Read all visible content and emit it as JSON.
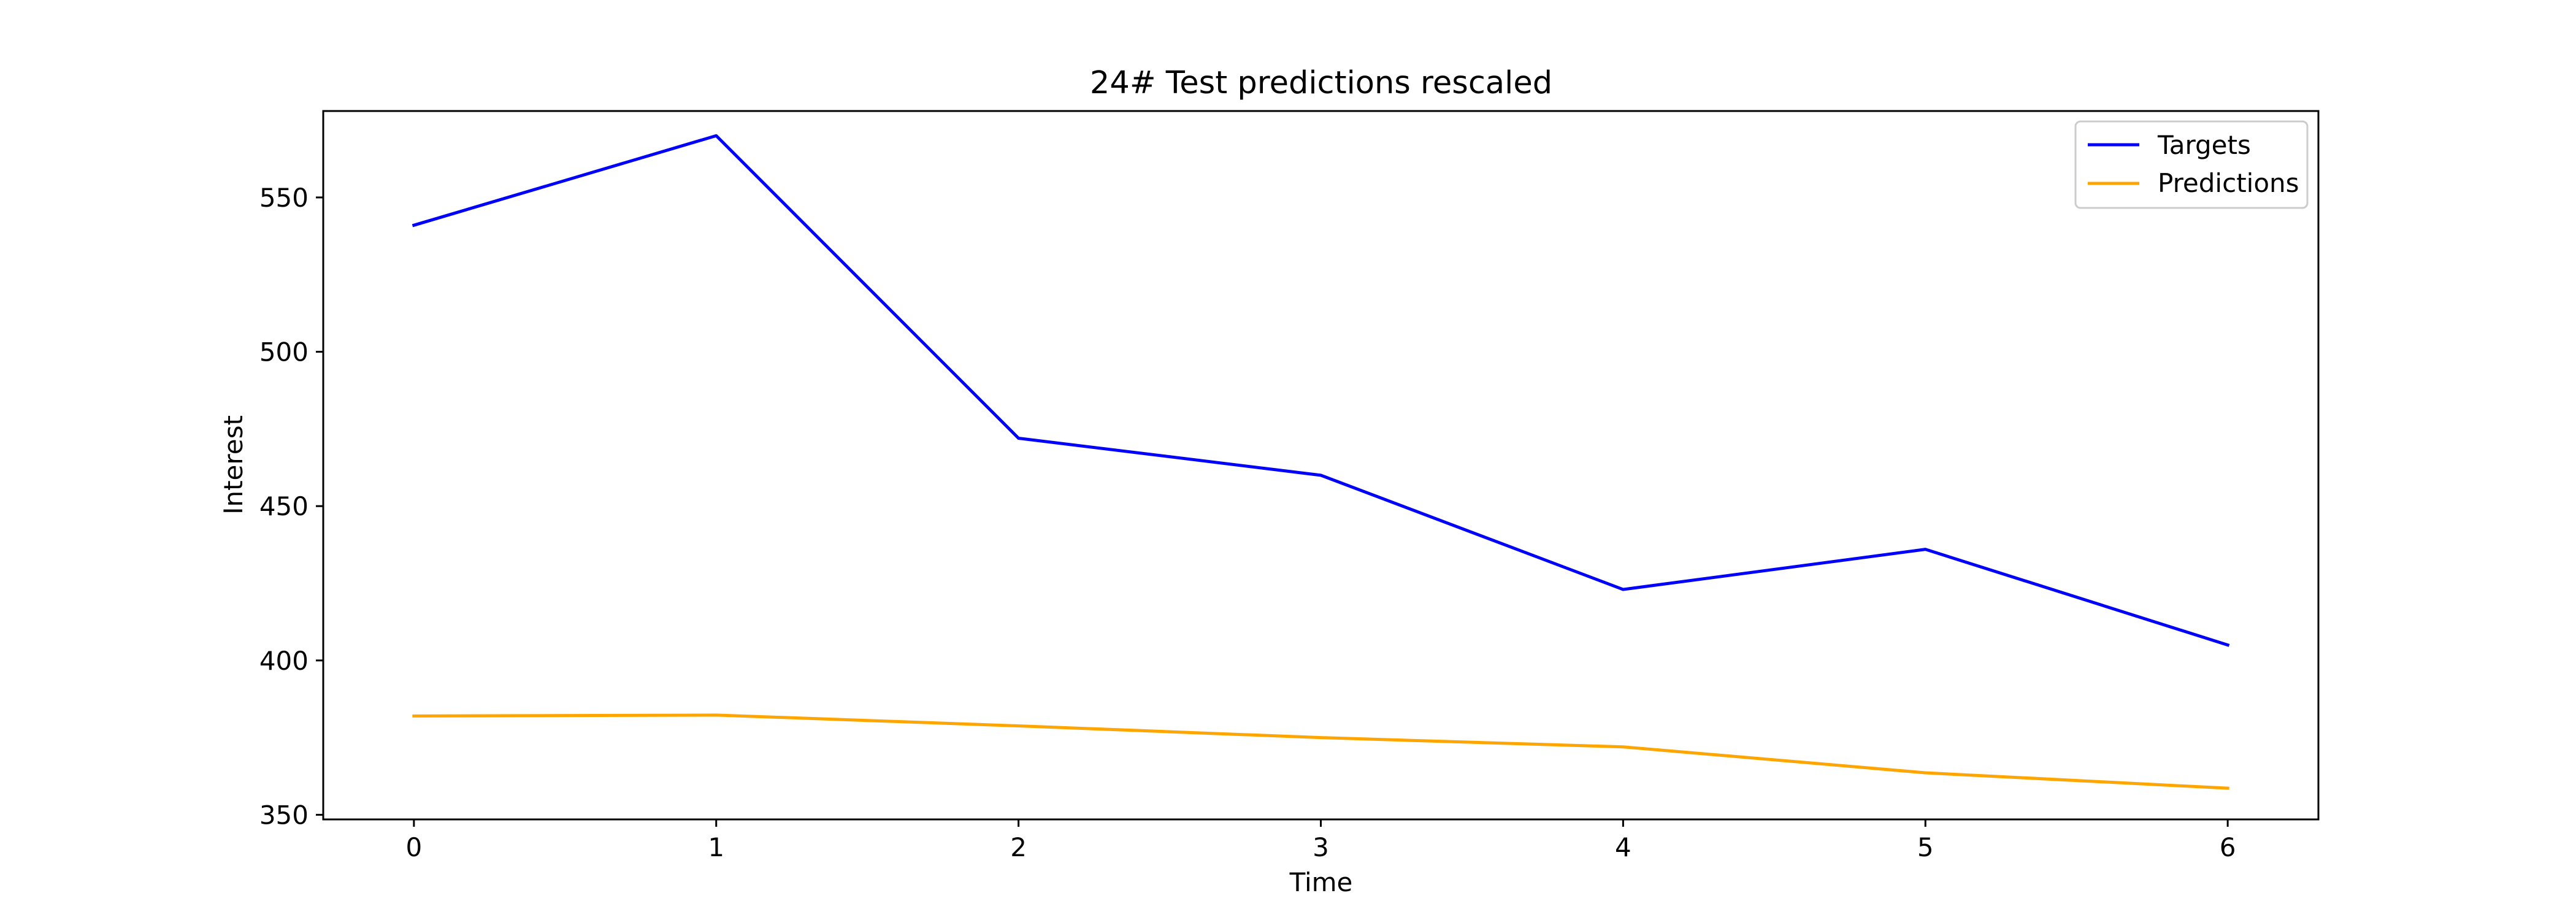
{
  "chart_data": {
    "type": "line",
    "title": "24# Test predictions rescaled",
    "xlabel": "Time",
    "ylabel": "Interest",
    "x": [
      0,
      1,
      2,
      3,
      4,
      5,
      6
    ],
    "xlim": [
      -0.3,
      6.3
    ],
    "ylim": [
      348.5,
      578
    ],
    "x_ticks": [
      0,
      1,
      2,
      3,
      4,
      5,
      6
    ],
    "y_ticks": [
      350,
      400,
      450,
      500,
      550
    ],
    "grid": false,
    "legend_position": "top-right",
    "series": [
      {
        "name": "Targets",
        "color": "#0000ff",
        "values": [
          541,
          570,
          472,
          460,
          423,
          436,
          405
        ]
      },
      {
        "name": "Predictions",
        "color": "#ffa500",
        "values": [
          382,
          382.3,
          378.8,
          375,
          372,
          363.6,
          358.6
        ]
      }
    ]
  }
}
